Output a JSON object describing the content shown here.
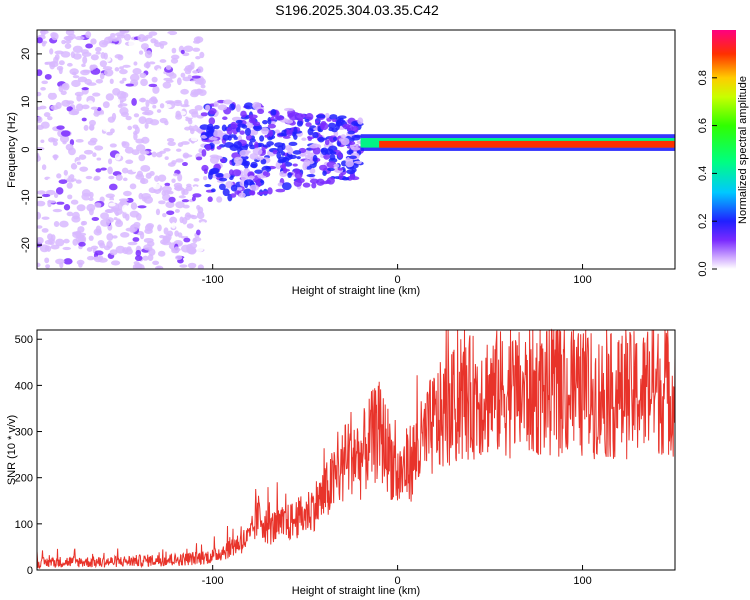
{
  "title": "S196.2025.304.03.35.C42",
  "chart_data": [
    {
      "type": "heatmap",
      "xlabel": "Height of straight line (km)",
      "ylabel": "Frequency (Hz)",
      "xlim": [
        -195,
        150
      ],
      "ylim": [
        -25,
        25
      ],
      "xticks": [
        -100,
        0,
        100
      ],
      "yticks": [
        -20,
        -10,
        0,
        10,
        20
      ],
      "colorbar": {
        "label": "Normalized spectral amplitude",
        "range": [
          0,
          1
        ],
        "ticks": [
          0.0,
          0.2,
          0.4,
          0.6,
          0.8
        ]
      },
      "description_regions": [
        {
          "x_from": -195,
          "x_to": -105,
          "freq_spread": 25,
          "amplitude": 0.1
        },
        {
          "x_from": -105,
          "x_to": -20,
          "freq_spread": 8,
          "amplitude": 0.2
        },
        {
          "x_from": -20,
          "x_to": 150,
          "freq_center": 1,
          "amplitude": 0.8
        }
      ]
    },
    {
      "type": "line",
      "xlabel": "Height of straight line (km)",
      "ylabel": "SNR (10 * v/v)",
      "xlim": [
        -195,
        150
      ],
      "ylim": [
        0,
        520
      ],
      "xticks": [
        -100,
        0,
        100
      ],
      "yticks": [
        0,
        100,
        200,
        300,
        400,
        500
      ],
      "series": [
        {
          "name": "SNR",
          "color": "#e8332a",
          "x": [
            -195,
            -180,
            -160,
            -140,
            -120,
            -110,
            -100,
            -90,
            -80,
            -75,
            -70,
            -60,
            -50,
            -40,
            -30,
            -25,
            -20,
            -15,
            -10,
            -5,
            0,
            10,
            20,
            30,
            40,
            50,
            60,
            80,
            100,
            120,
            140,
            150
          ],
          "y": [
            15,
            18,
            17,
            20,
            22,
            25,
            30,
            50,
            70,
            120,
            90,
            100,
            120,
            160,
            220,
            260,
            240,
            280,
            300,
            260,
            200,
            250,
            320,
            350,
            375,
            385,
            380,
            385,
            380,
            375,
            390,
            385
          ]
        }
      ]
    }
  ]
}
